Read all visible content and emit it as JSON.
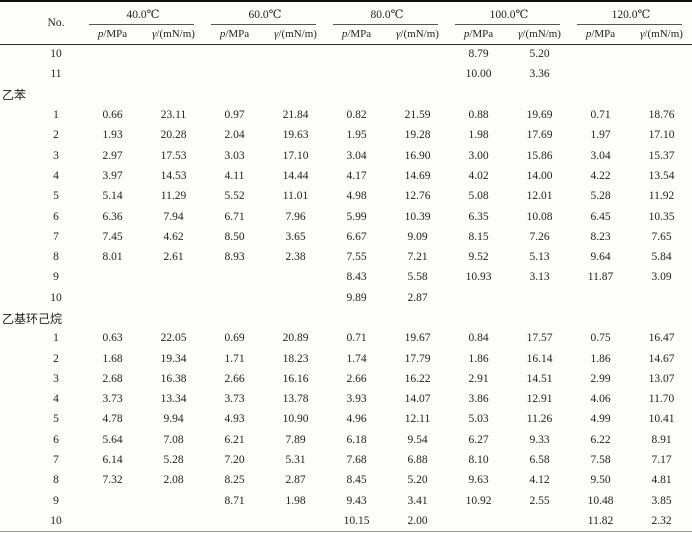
{
  "page": {
    "background_color": "#fdfdfc",
    "text_color": "#222222",
    "rule_color": "#101010"
  },
  "table": {
    "no_header": "No.",
    "temp_groups": [
      {
        "label": "40.0℃"
      },
      {
        "label": "60.0℃"
      },
      {
        "label": "80.0℃"
      },
      {
        "label": "100.0℃"
      },
      {
        "label": "120.0℃"
      }
    ],
    "sub_header": {
      "p_symbol": "p",
      "p_unit": "/MPa",
      "gamma_symbol": "γ",
      "gamma_unit": "/(mN/m)"
    },
    "rows": [
      {
        "no": "10",
        "cells": [
          "",
          "",
          "",
          "",
          "",
          "",
          "8.79",
          "5.20",
          "",
          ""
        ]
      },
      {
        "no": "11",
        "cells": [
          "",
          "",
          "",
          "",
          "",
          "",
          "10.00",
          "3.36",
          "",
          ""
        ]
      },
      {
        "section": "乙苯"
      },
      {
        "no": "1",
        "cells": [
          "0.66",
          "23.11",
          "0.97",
          "21.84",
          "0.82",
          "21.59",
          "0.88",
          "19.69",
          "0.71",
          "18.76"
        ]
      },
      {
        "no": "2",
        "cells": [
          "1.93",
          "20.28",
          "2.04",
          "19.63",
          "1.95",
          "19.28",
          "1.98",
          "17.69",
          "1.97",
          "17.10"
        ]
      },
      {
        "no": "3",
        "cells": [
          "2.97",
          "17.53",
          "3.03",
          "17.10",
          "3.04",
          "16.90",
          "3.00",
          "15.86",
          "3.04",
          "15.37"
        ]
      },
      {
        "no": "4",
        "cells": [
          "3.97",
          "14.53",
          "4.11",
          "14.44",
          "4.17",
          "14.69",
          "4.02",
          "14.00",
          "4.22",
          "13.54"
        ]
      },
      {
        "no": "5",
        "cells": [
          "5.14",
          "11.29",
          "5.52",
          "11.01",
          "4.98",
          "12.76",
          "5.08",
          "12.01",
          "5.28",
          "11.92"
        ]
      },
      {
        "no": "6",
        "cells": [
          "6.36",
          "7.94",
          "6.71",
          "7.96",
          "5.99",
          "10.39",
          "6.35",
          "10.08",
          "6.45",
          "10.35"
        ]
      },
      {
        "no": "7",
        "cells": [
          "7.45",
          "4.62",
          "8.50",
          "3.65",
          "6.67",
          "9.09",
          "8.15",
          "7.26",
          "8.23",
          "7.65"
        ]
      },
      {
        "no": "8",
        "cells": [
          "8.01",
          "2.61",
          "8.93",
          "2.38",
          "7.55",
          "7.21",
          "9.52",
          "5.13",
          "9.64",
          "5.84"
        ]
      },
      {
        "no": "9",
        "cells": [
          "",
          "",
          "",
          "",
          "8.43",
          "5.58",
          "10.93",
          "3.13",
          "11.87",
          "3.09"
        ]
      },
      {
        "no": "10",
        "cells": [
          "",
          "",
          "",
          "",
          "9.89",
          "2.87",
          "",
          "",
          "",
          ""
        ]
      },
      {
        "section": "乙基环己烷"
      },
      {
        "no": "1",
        "cells": [
          "0.63",
          "22.05",
          "0.69",
          "20.89",
          "0.71",
          "19.67",
          "0.84",
          "17.57",
          "0.75",
          "16.47"
        ]
      },
      {
        "no": "2",
        "cells": [
          "1.68",
          "19.34",
          "1.71",
          "18.23",
          "1.74",
          "17.79",
          "1.86",
          "16.14",
          "1.86",
          "14.67"
        ]
      },
      {
        "no": "3",
        "cells": [
          "2.68",
          "16.38",
          "2.66",
          "16.16",
          "2.66",
          "16.22",
          "2.91",
          "14.51",
          "2.99",
          "13.07"
        ]
      },
      {
        "no": "4",
        "cells": [
          "3.73",
          "13.34",
          "3.73",
          "13.78",
          "3.93",
          "14.07",
          "3.86",
          "12.91",
          "4.06",
          "11.70"
        ]
      },
      {
        "no": "5",
        "cells": [
          "4.78",
          "9.94",
          "4.93",
          "10.90",
          "4.96",
          "12.11",
          "5.03",
          "11.26",
          "4.99",
          "10.41"
        ]
      },
      {
        "no": "6",
        "cells": [
          "5.64",
          "7.08",
          "6.21",
          "7.89",
          "6.18",
          "9.54",
          "6.27",
          "9.33",
          "6.22",
          "8.91"
        ]
      },
      {
        "no": "7",
        "cells": [
          "6.14",
          "5.28",
          "7.20",
          "5.31",
          "7.68",
          "6.88",
          "8.10",
          "6.58",
          "7.58",
          "7.17"
        ]
      },
      {
        "no": "8",
        "cells": [
          "7.32",
          "2.08",
          "8.25",
          "2.87",
          "8.45",
          "5.20",
          "9.63",
          "4.12",
          "9.50",
          "4.81"
        ]
      },
      {
        "no": "9",
        "cells": [
          "",
          "",
          "8.71",
          "1.98",
          "9.43",
          "3.41",
          "10.92",
          "2.55",
          "10.48",
          "3.85"
        ]
      },
      {
        "no": "10",
        "cells": [
          "",
          "",
          "",
          "",
          "10.15",
          "2.00",
          "",
          "",
          "11.82",
          "2.32"
        ]
      }
    ]
  }
}
